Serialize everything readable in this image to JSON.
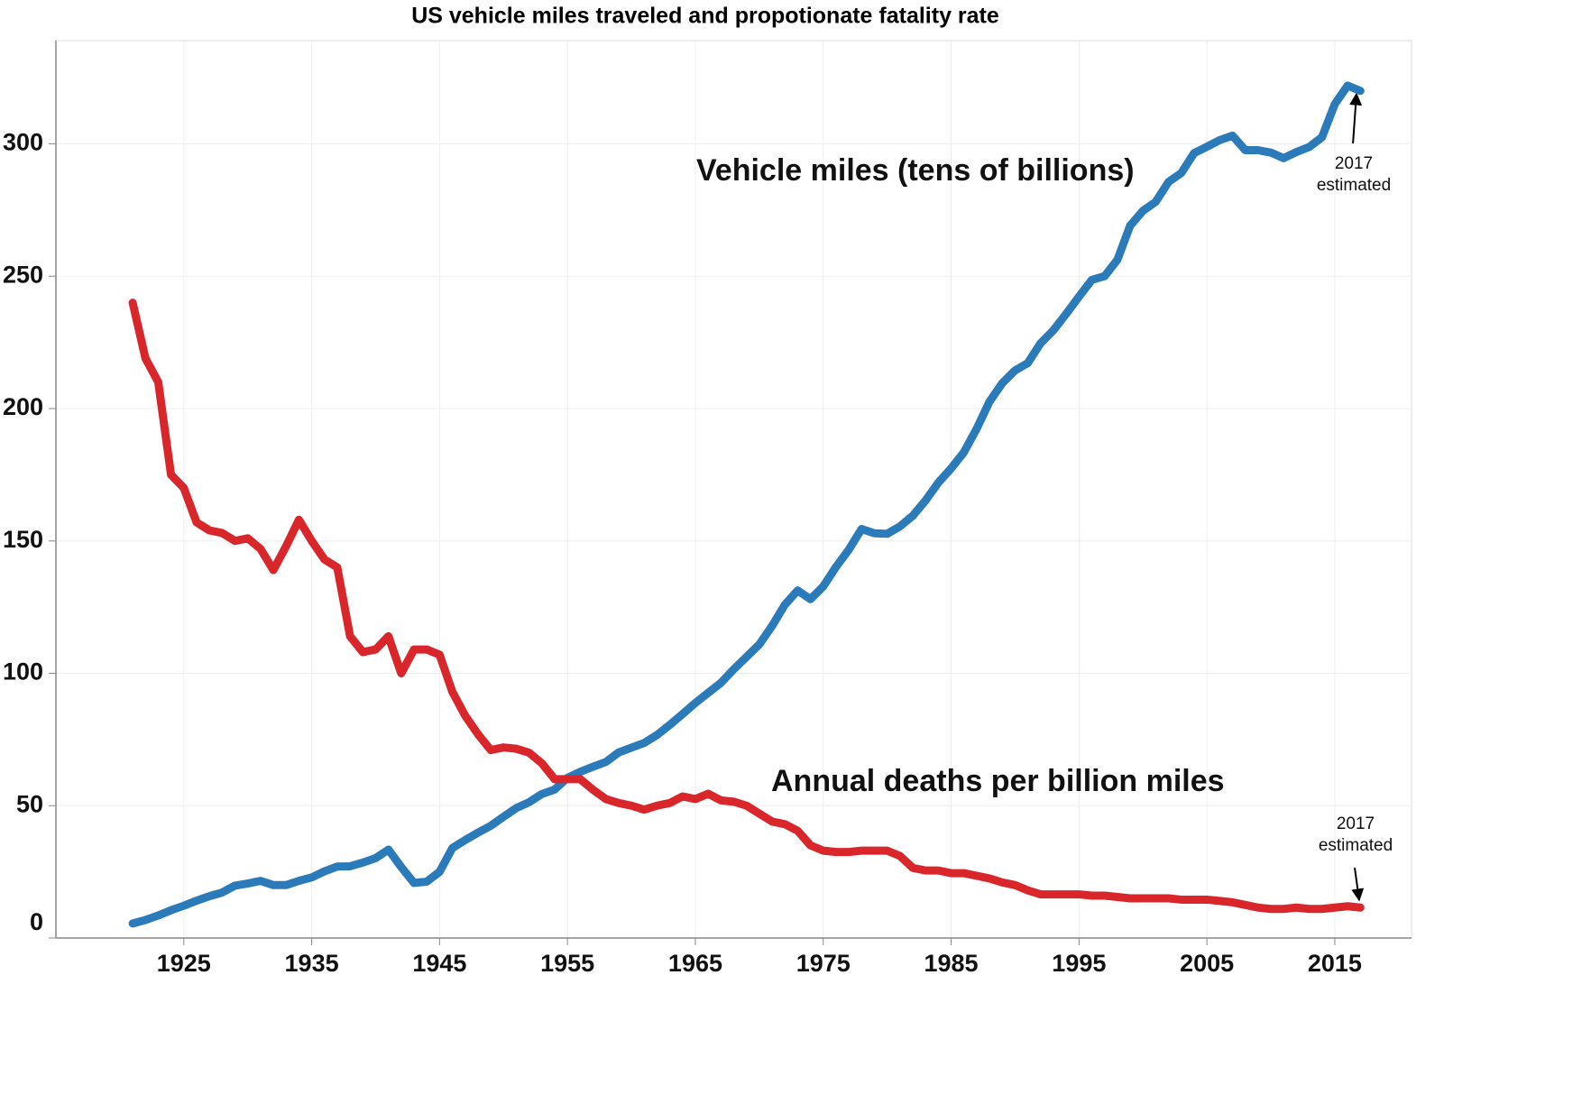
{
  "chart_data": {
    "type": "line",
    "title": "US vehicle miles traveled and propotionate fatality rate",
    "x": [
      1921,
      1922,
      1923,
      1924,
      1925,
      1926,
      1927,
      1928,
      1929,
      1930,
      1931,
      1932,
      1933,
      1934,
      1935,
      1936,
      1937,
      1938,
      1939,
      1940,
      1941,
      1942,
      1943,
      1944,
      1945,
      1946,
      1947,
      1948,
      1949,
      1950,
      1951,
      1952,
      1953,
      1954,
      1955,
      1956,
      1957,
      1958,
      1959,
      1960,
      1961,
      1962,
      1963,
      1964,
      1965,
      1966,
      1967,
      1968,
      1969,
      1970,
      1971,
      1972,
      1973,
      1974,
      1975,
      1976,
      1977,
      1978,
      1979,
      1980,
      1981,
      1982,
      1983,
      1984,
      1985,
      1986,
      1987,
      1988,
      1989,
      1990,
      1991,
      1992,
      1993,
      1994,
      1995,
      1996,
      1997,
      1998,
      1999,
      2000,
      2001,
      2002,
      2003,
      2004,
      2005,
      2006,
      2007,
      2008,
      2009,
      2010,
      2011,
      2012,
      2013,
      2014,
      2015,
      2016,
      2017
    ],
    "series": [
      {
        "color": "#2b7bba",
        "values": [
          5.5,
          6.8,
          8.5,
          10.5,
          12.2,
          14.1,
          15.8,
          17.2,
          19.8,
          20.6,
          21.6,
          20,
          20,
          21.6,
          22.9,
          25.2,
          27,
          27.1,
          28.5,
          30.2,
          33.4,
          26.8,
          20.8,
          21.3,
          25,
          34,
          37,
          39.8,
          42.4,
          45.8,
          49.1,
          51.3,
          54.4,
          56.1,
          60.5,
          62.8,
          64.7,
          66.5,
          70.1,
          71.9,
          73.7,
          76.7,
          80.5,
          84.6,
          88.8,
          92.6,
          96.4,
          101.5,
          106.2,
          110.9,
          117.9,
          125.9,
          131.3,
          128,
          132.8,
          140.2,
          146.7,
          154.5,
          152.9,
          152.7,
          155.5,
          159.5,
          165.3,
          172,
          177.4,
          183.5,
          192.4,
          202.6,
          209.6,
          214.4,
          217.2,
          224.7,
          229.6,
          235.8,
          242.3,
          248.6,
          250,
          256.2,
          269.1,
          274.7,
          278.1,
          285.6,
          289,
          296.5,
          298.9,
          301.4,
          303.1,
          297.6,
          297.6,
          296.7,
          294.6,
          296.9,
          298.8,
          302.5,
          315,
          322,
          320
        ]
      },
      {
        "color": "#d9262b",
        "values": [
          240,
          219,
          210,
          175,
          170,
          157,
          154,
          153,
          150,
          151,
          147,
          139,
          148,
          158,
          150,
          143,
          140,
          114,
          108,
          109,
          114,
          100,
          109,
          109,
          107,
          93,
          84,
          77,
          71,
          72,
          71.5,
          70,
          66,
          60,
          60,
          60,
          56,
          52.5,
          51,
          50,
          48.5,
          50,
          51,
          53.5,
          52.5,
          54.5,
          52,
          51.5,
          50,
          47,
          44,
          43,
          40.5,
          35,
          33,
          32.5,
          32.5,
          33,
          33,
          33,
          31,
          26.5,
          25.5,
          25.5,
          24.5,
          24.5,
          23.5,
          22.5,
          21,
          20,
          18,
          16.5,
          16.5,
          16.5,
          16.5,
          16,
          16,
          15.5,
          15,
          15,
          15,
          15,
          14.5,
          14.5,
          14.5,
          14,
          13.5,
          12.5,
          11.5,
          11,
          11,
          11.5,
          11,
          11,
          11.5,
          12,
          11.5
        ]
      }
    ],
    "annotations": [
      {
        "text": "Vehicle miles (tens of billions)"
      },
      {
        "text": "Annual deaths per billion miles"
      },
      {
        "text": "2017 estimated"
      },
      {
        "text": "2017 estimated"
      }
    ],
    "xlim": [
      1915,
      2021
    ],
    "xticks": [
      1925,
      1935,
      1945,
      1955,
      1965,
      1975,
      1985,
      1995,
      2005,
      2015
    ],
    "ylim": [
      0,
      339
    ],
    "yticks": [
      0,
      50,
      100,
      150,
      200,
      250,
      300
    ],
    "grid": true
  }
}
